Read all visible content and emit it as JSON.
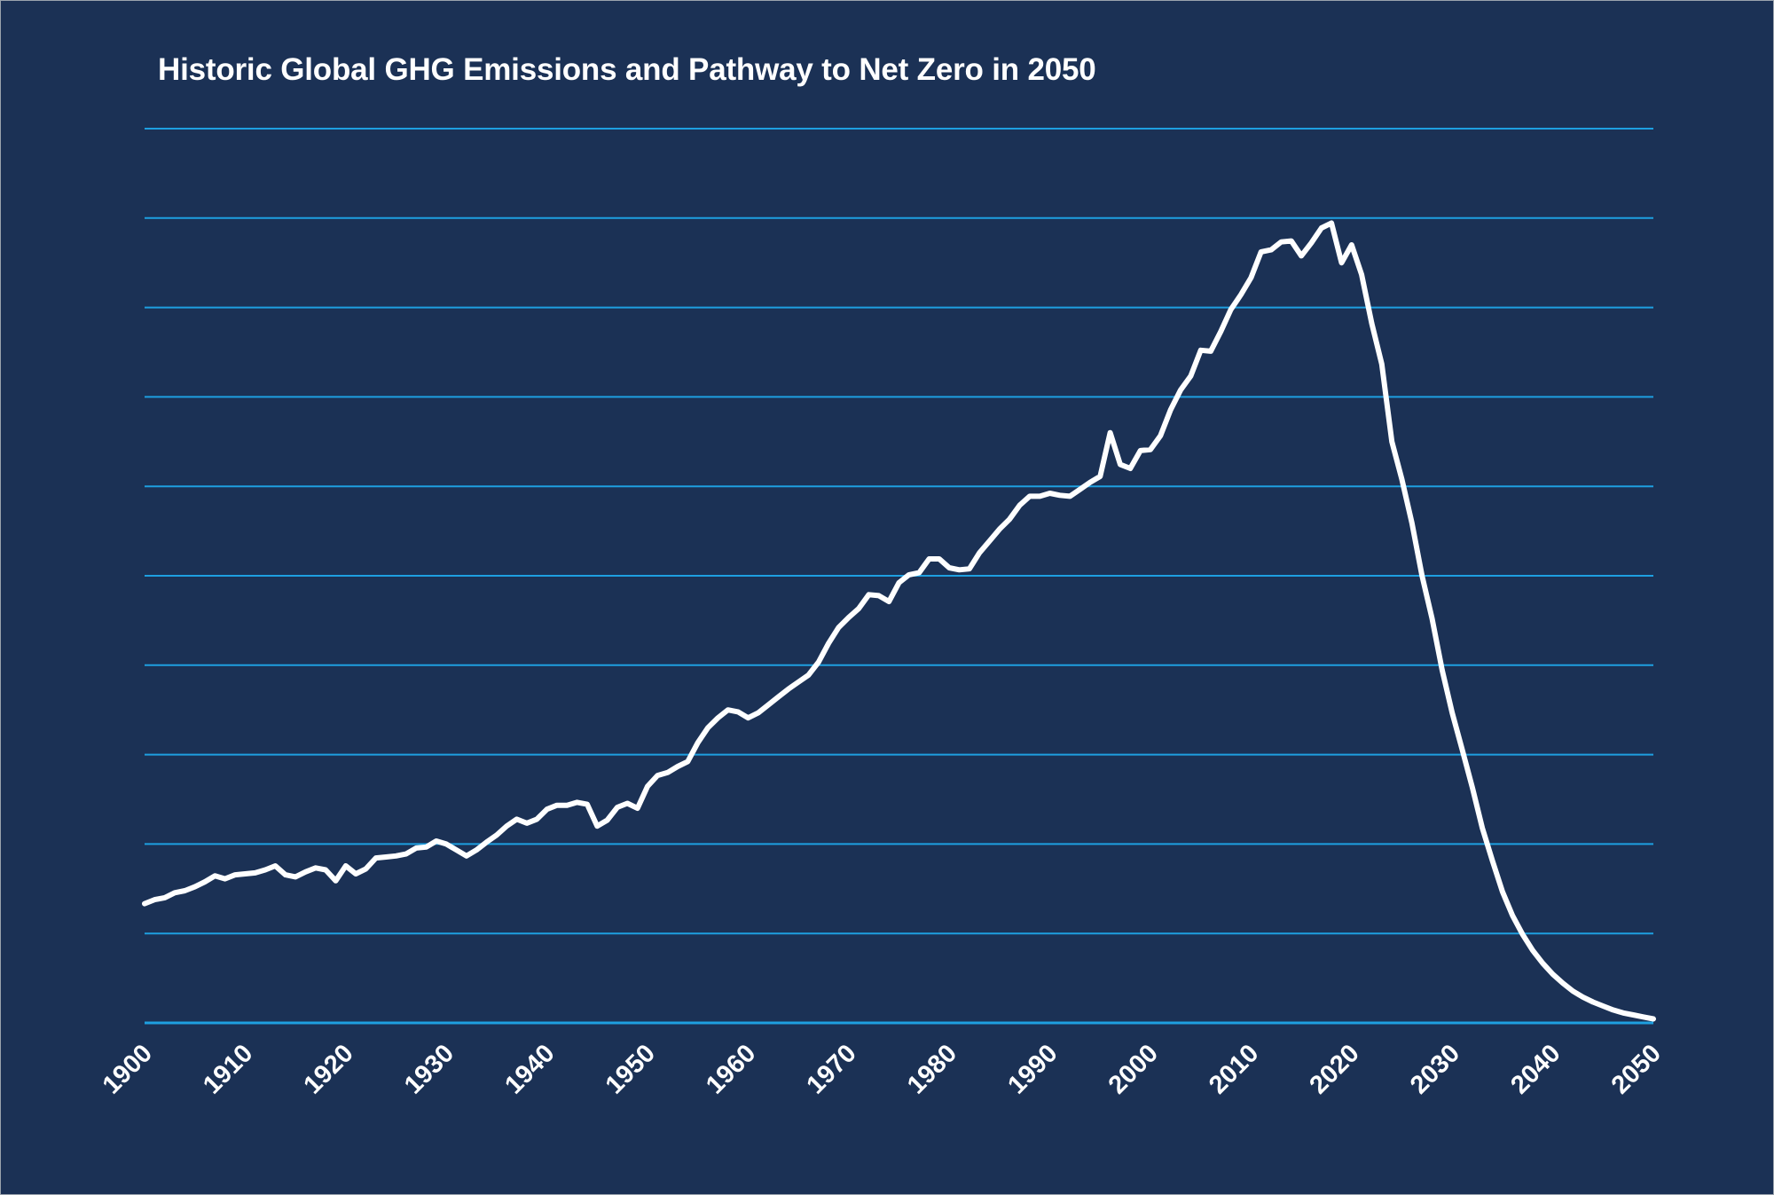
{
  "chart_data": {
    "type": "line",
    "title": "Historic Global GHG Emissions and Pathway to Net Zero in 2050",
    "xlabel": "",
    "ylabel": "",
    "xlim": [
      1900,
      2050
    ],
    "ylim": [
      0,
      90
    ],
    "x_ticks": [
      "1900",
      "1910",
      "1920",
      "1930",
      "1940",
      "1950",
      "1960",
      "1970",
      "1980",
      "1990",
      "2000",
      "2010",
      "2020",
      "2030",
      "2040",
      "2050"
    ],
    "y_tick_labels_shown": false,
    "grid": true,
    "gridline_count": 10,
    "legend": "none",
    "colors": {
      "background": "#1b3155",
      "grid": "#1e9fe0",
      "line": "#ffffff",
      "text": "#ffffff"
    },
    "series": [
      {
        "points": [
          [
            1900,
            12.0
          ],
          [
            1901,
            12.4
          ],
          [
            1902,
            12.6
          ],
          [
            1903,
            13.1
          ],
          [
            1904,
            13.3
          ],
          [
            1905,
            13.7
          ],
          [
            1906,
            14.2
          ],
          [
            1907,
            14.8
          ],
          [
            1908,
            14.5
          ],
          [
            1909,
            14.9
          ],
          [
            1910,
            15.0
          ],
          [
            1911,
            15.1
          ],
          [
            1912,
            15.4
          ],
          [
            1913,
            15.8
          ],
          [
            1914,
            14.9
          ],
          [
            1915,
            14.7
          ],
          [
            1916,
            15.2
          ],
          [
            1917,
            15.6
          ],
          [
            1918,
            15.4
          ],
          [
            1919,
            14.3
          ],
          [
            1920,
            15.8
          ],
          [
            1921,
            15.0
          ],
          [
            1922,
            15.5
          ],
          [
            1923,
            16.6
          ],
          [
            1924,
            16.7
          ],
          [
            1925,
            16.8
          ],
          [
            1926,
            17.0
          ],
          [
            1927,
            17.6
          ],
          [
            1928,
            17.7
          ],
          [
            1929,
            18.3
          ],
          [
            1930,
            18.0
          ],
          [
            1931,
            17.4
          ],
          [
            1932,
            16.8
          ],
          [
            1933,
            17.4
          ],
          [
            1934,
            18.2
          ],
          [
            1935,
            18.9
          ],
          [
            1936,
            19.8
          ],
          [
            1937,
            20.5
          ],
          [
            1938,
            20.1
          ],
          [
            1939,
            20.5
          ],
          [
            1940,
            21.5
          ],
          [
            1941,
            21.9
          ],
          [
            1942,
            21.9
          ],
          [
            1943,
            22.2
          ],
          [
            1944,
            22.0
          ],
          [
            1945,
            19.8
          ],
          [
            1946,
            20.4
          ],
          [
            1947,
            21.7
          ],
          [
            1948,
            22.1
          ],
          [
            1949,
            21.6
          ],
          [
            1950,
            23.8
          ],
          [
            1951,
            24.9
          ],
          [
            1952,
            25.2
          ],
          [
            1953,
            25.8
          ],
          [
            1954,
            26.3
          ],
          [
            1955,
            28.2
          ],
          [
            1956,
            29.7
          ],
          [
            1957,
            30.7
          ],
          [
            1958,
            31.5
          ],
          [
            1959,
            31.3
          ],
          [
            1960,
            30.7
          ],
          [
            1961,
            31.2
          ],
          [
            1962,
            32.0
          ],
          [
            1963,
            32.8
          ],
          [
            1964,
            33.6
          ],
          [
            1965,
            34.3
          ],
          [
            1966,
            35.0
          ],
          [
            1967,
            36.3
          ],
          [
            1968,
            38.2
          ],
          [
            1969,
            39.8
          ],
          [
            1970,
            40.8
          ],
          [
            1971,
            41.7
          ],
          [
            1972,
            43.1
          ],
          [
            1973,
            43.0
          ],
          [
            1974,
            42.4
          ],
          [
            1975,
            44.3
          ],
          [
            1976,
            45.1
          ],
          [
            1977,
            45.3
          ],
          [
            1978,
            46.7
          ],
          [
            1979,
            46.7
          ],
          [
            1980,
            45.8
          ],
          [
            1981,
            45.6
          ],
          [
            1982,
            45.7
          ],
          [
            1983,
            47.3
          ],
          [
            1984,
            48.5
          ],
          [
            1985,
            49.7
          ],
          [
            1986,
            50.7
          ],
          [
            1987,
            52.1
          ],
          [
            1988,
            53.0
          ],
          [
            1989,
            53.0
          ],
          [
            1990,
            53.3
          ],
          [
            1991,
            53.1
          ],
          [
            1992,
            53.0
          ],
          [
            1993,
            53.7
          ],
          [
            1994,
            54.4
          ],
          [
            1995,
            55.0
          ],
          [
            1996,
            59.4
          ],
          [
            1997,
            56.2
          ],
          [
            1998,
            55.8
          ],
          [
            1999,
            57.6
          ],
          [
            2000,
            57.7
          ],
          [
            2001,
            59.1
          ],
          [
            2002,
            61.7
          ],
          [
            2003,
            63.7
          ],
          [
            2004,
            65.1
          ],
          [
            2005,
            67.7
          ],
          [
            2006,
            67.6
          ],
          [
            2007,
            69.6
          ],
          [
            2008,
            71.8
          ],
          [
            2009,
            73.3
          ],
          [
            2010,
            75.0
          ],
          [
            2011,
            77.6
          ],
          [
            2012,
            77.8
          ],
          [
            2013,
            78.6
          ],
          [
            2014,
            78.7
          ],
          [
            2015,
            77.2
          ],
          [
            2016,
            78.5
          ],
          [
            2017,
            80.0
          ],
          [
            2018,
            80.5
          ],
          [
            2019,
            76.5
          ],
          [
            2020,
            78.3
          ],
          [
            2021,
            75.3
          ],
          [
            2022,
            70.4
          ],
          [
            2023,
            66.3
          ],
          [
            2024,
            58.5
          ],
          [
            2025,
            54.7
          ],
          [
            2026,
            50.3
          ],
          [
            2027,
            45.0
          ],
          [
            2028,
            40.7
          ],
          [
            2029,
            35.5
          ],
          [
            2030,
            31.2
          ],
          [
            2031,
            27.5
          ],
          [
            2032,
            23.7
          ],
          [
            2033,
            19.6
          ],
          [
            2034,
            16.3
          ],
          [
            2035,
            13.2
          ],
          [
            2036,
            10.8
          ],
          [
            2037,
            8.9
          ],
          [
            2038,
            7.3
          ],
          [
            2039,
            6.0
          ],
          [
            2040,
            4.9
          ],
          [
            2041,
            4.0
          ],
          [
            2042,
            3.2
          ],
          [
            2043,
            2.6
          ],
          [
            2044,
            2.1
          ],
          [
            2045,
            1.7
          ],
          [
            2046,
            1.3
          ],
          [
            2047,
            1.0
          ],
          [
            2048,
            0.8
          ],
          [
            2049,
            0.6
          ],
          [
            2050,
            0.4
          ]
        ]
      }
    ]
  }
}
